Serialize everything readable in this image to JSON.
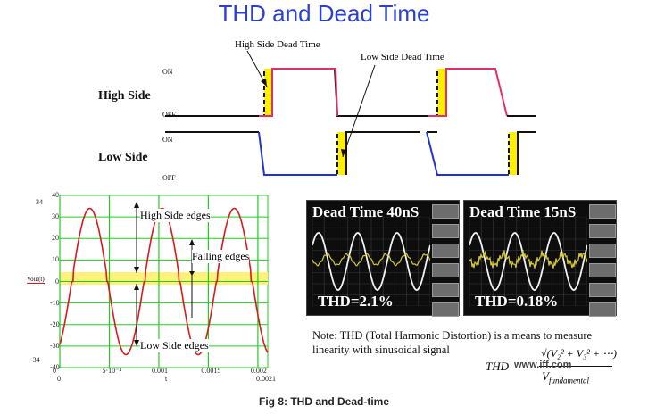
{
  "title": "THD and Dead Time",
  "timing": {
    "high_side_dead_time_label": "High Side Dead Time",
    "low_side_dead_time_label": "Low Side Dead Time",
    "high_side_label": "High Side",
    "low_side_label": "Low Side",
    "on_label": "ON",
    "off_label": "OFF",
    "colors": {
      "high": "#e0306a",
      "low": "#2233cc",
      "dead_fill": "#ffee00"
    }
  },
  "plot": {
    "ylabel": "Vout(t)",
    "left_top_label": "34",
    "left_bottom_label": "-34",
    "y_ticks": [
      "40",
      "30",
      "20",
      "10",
      "0",
      "-10",
      "-20",
      "-30",
      "-40"
    ],
    "x_ticks": [
      "0",
      "5·10⁻⁴",
      "0.001",
      "0.0015",
      "0.002"
    ],
    "x_left_sub": "0",
    "x_mid_label": "t",
    "x_right_label": "0.0021",
    "annotations": {
      "high_side_edges": "High Side edges",
      "falling_edges": "Falling edges",
      "low_side_edges": "Low Side edges"
    },
    "colors": {
      "grid": "#22cc22",
      "curve": "#d81b1b",
      "band": "#fff27a"
    }
  },
  "scopes": [
    {
      "title": "Dead Time 40nS",
      "thd": "THD=2.1%"
    },
    {
      "title": "Dead Time 15nS",
      "thd": "THD=0.18%"
    }
  ],
  "note": "Note: THD (Total Harmonic Distortion) is a means to measure linearity with sinusoidal signal",
  "formula": {
    "lhs": "THD",
    "numerator": "√(V₂² + V₃² + ⋯)",
    "denominator": "V",
    "denominator_sub": "fundamental"
  },
  "watermark": "www.iff.com",
  "caption": "Fig 8: THD and Dead-time"
}
